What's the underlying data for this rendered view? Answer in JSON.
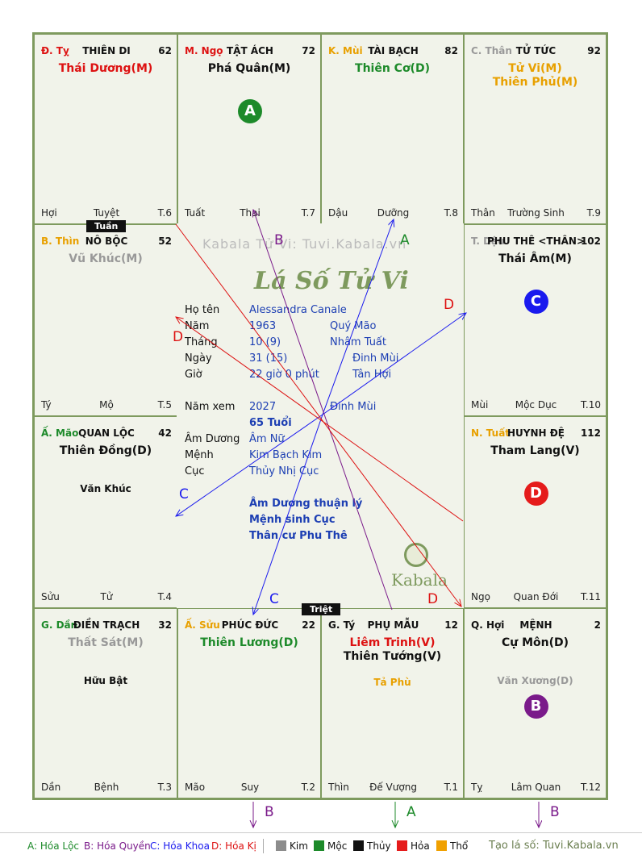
{
  "watermark": "Kabala Tử Vi: Tuvi.Kabala.vn",
  "logo_script": "Lá Số Tử Vi",
  "logo_brand": "Kabala",
  "tags": {
    "tuan": "Tuần",
    "triet": "Triệt"
  },
  "cells": [
    {
      "id": "ty",
      "can": "Đ. Tỵ",
      "can_color": "#d11",
      "palace": "THIÊN DI",
      "num": "62",
      "stars": [
        {
          "t": "Thái Dương(M)",
          "c": "#d11"
        }
      ],
      "minor": [],
      "bl": "Hợi",
      "bm": "Tuyệt",
      "br": "T.6"
    },
    {
      "id": "ngo",
      "can": "M. Ngọ",
      "can_color": "#d11",
      "palace": "TẬT ÁCH",
      "num": "72",
      "stars": [
        {
          "t": "Phá Quân(M)",
          "c": "#111"
        }
      ],
      "minor": [],
      "bl": "Tuất",
      "bm": "Thai",
      "br": "T.7"
    },
    {
      "id": "mui",
      "can": "K. Mùi",
      "can_color": "#e8a000",
      "palace": "TÀI BẠCH",
      "num": "82",
      "stars": [
        {
          "t": "Thiên Cơ(D)",
          "c": "#1d8a2a"
        }
      ],
      "minor": [],
      "bl": "Dậu",
      "bm": "Dưỡng",
      "br": "T.8"
    },
    {
      "id": "than",
      "can": "C. Thân",
      "can_color": "#999",
      "palace": "TỬ TỨC",
      "num": "92",
      "stars": [
        {
          "t": "Tử Vi(M)",
          "c": "#e8a000"
        },
        {
          "t": "Thiên Phủ(M)",
          "c": "#e8a000"
        }
      ],
      "minor": [],
      "bl": "Thân",
      "bm": "Trường Sinh",
      "br": "T.9"
    },
    {
      "id": "thin",
      "can": "B. Thìn",
      "can_color": "#e8a000",
      "palace": "NÔ BỘC",
      "num": "52",
      "stars": [
        {
          "t": "Vũ Khúc(M)",
          "c": "#999"
        }
      ],
      "minor": [],
      "bl": "Tý",
      "bm": "Mộ",
      "br": "T.5"
    },
    {
      "id": "dau",
      "can": "T. Dậu",
      "can_color": "#999",
      "palace": "PHU THÊ <THÂN>",
      "num": "102",
      "stars": [
        {
          "t": "Thái Âm(M)",
          "c": "#111"
        }
      ],
      "minor": [],
      "bl": "Mùi",
      "bm": "Mộc Dục",
      "br": "T.10"
    },
    {
      "id": "mao",
      "can": "Ấ. Mão",
      "can_color": "#1d8a2a",
      "palace": "QUAN LỘC",
      "num": "42",
      "stars": [
        {
          "t": "Thiên Đồng(D)",
          "c": "#111"
        }
      ],
      "minor": [
        {
          "t": "Văn Khúc",
          "c": "#111"
        }
      ],
      "bl": "Sửu",
      "bm": "Tử",
      "br": "T.4"
    },
    {
      "id": "tuat",
      "can": "N. Tuất",
      "can_color": "#e8a000",
      "palace": "HUYNH ĐỆ",
      "num": "112",
      "stars": [
        {
          "t": "Tham Lang(V)",
          "c": "#111"
        }
      ],
      "minor": [],
      "bl": "Ngọ",
      "bm": "Quan Đới",
      "br": "T.11"
    },
    {
      "id": "dan",
      "can": "G. Dần",
      "can_color": "#1d8a2a",
      "palace": "ĐIỀN TRẠCH",
      "num": "32",
      "stars": [
        {
          "t": "Thất Sát(M)",
          "c": "#999"
        }
      ],
      "minor": [
        {
          "t": "Hữu Bật",
          "c": "#111"
        }
      ],
      "bl": "Dần",
      "bm": "Bệnh",
      "br": "T.3"
    },
    {
      "id": "suu",
      "can": "Ấ. Sửu",
      "can_color": "#e8a000",
      "palace": "PHÚC ĐỨC",
      "num": "22",
      "stars": [
        {
          "t": "Thiên Lương(D)",
          "c": "#1d8a2a"
        }
      ],
      "minor": [],
      "bl": "Mão",
      "bm": "Suy",
      "br": "T.2"
    },
    {
      "id": "tyy",
      "can": "G. Tý",
      "can_color": "#111",
      "palace": "PHỤ MẪU",
      "num": "12",
      "stars": [
        {
          "t": "Liêm Trinh(V)",
          "c": "#d11"
        },
        {
          "t": "Thiên Tướng(V)",
          "c": "#111"
        }
      ],
      "minor": [
        {
          "t": "Tả Phù",
          "c": "#e8a000"
        }
      ],
      "bl": "Thìn",
      "bm": "Đế Vượng",
      "br": "T.1"
    },
    {
      "id": "hoi",
      "can": "Q. Hợi",
      "can_color": "#111",
      "palace": "MỆNH",
      "num": "2",
      "stars": [
        {
          "t": "Cự Môn(D)",
          "c": "#111"
        }
      ],
      "minor": [
        {
          "t": "Văn Xương(D)",
          "c": "#999"
        }
      ],
      "bl": "Tỵ",
      "bm": "Lâm Quan",
      "br": "T.12"
    }
  ],
  "badges": [
    {
      "id": "A",
      "cell": "ngo",
      "color": "#1d8a2a"
    },
    {
      "id": "C",
      "cell": "dau",
      "color": "#1a1aee"
    },
    {
      "id": "D",
      "cell": "tuat",
      "color": "#e51b1b"
    },
    {
      "id": "B",
      "cell": "hoi",
      "color": "#7a1a8a"
    }
  ],
  "info": {
    "ho_ten_label": "Họ tên",
    "ho_ten": "Alessandra Canale",
    "nam_label": "Năm",
    "nam": "1963",
    "nam_can": "Quý Mão",
    "thang_label": "Tháng",
    "thang": "10  (9)",
    "thang_can": "Nhâm Tuất",
    "ngay_label": "Ngày",
    "ngay": "31  (15)",
    "ngay_can": "Đinh Mùi",
    "gio_label": "Giờ",
    "gio": "22 giờ 0 phút",
    "gio_can": "Tân Hợi",
    "namxem_label": "Năm xem",
    "namxem": "2027",
    "namxem_can": "Đinh Mùi",
    "tuoi": "65 Tuổi",
    "amduong_label": "Âm Dương",
    "amduong": "Âm Nữ",
    "menh_label": "Mệnh",
    "menh": "Kim Bạch Kim",
    "cuc_label": "Cục",
    "cuc": "Thủy Nhị Cục",
    "note1": "Âm Dương thuận lý",
    "note2": "Mệnh sinh Cục",
    "note3": "Thân cư Phu Thê"
  },
  "arrow_labels": [
    {
      "t": "A",
      "c": "#1d8a2a"
    },
    {
      "t": "B",
      "c": "#7a1a8a"
    },
    {
      "t": "D",
      "c": "#d11"
    },
    {
      "t": "D",
      "c": "#d11"
    },
    {
      "t": "C",
      "c": "#1a1aee"
    },
    {
      "t": "C",
      "c": "#1a1aee"
    },
    {
      "t": "D",
      "c": "#d11"
    },
    {
      "t": "B",
      "c": "#7a1a8a"
    },
    {
      "t": "A",
      "c": "#1d8a2a"
    },
    {
      "t": "B",
      "c": "#7a1a8a"
    }
  ],
  "legend": {
    "a": "A: Hóa Lộc",
    "b": "B: Hóa Quyền",
    "c": "C: Hóa Khoa",
    "d": "D: Hóa Kị",
    "kim": "Kim",
    "moc": "Mộc",
    "thuy": "Thủy",
    "hoa": "Hỏa",
    "tho": "Thổ",
    "kim_color": "#8c8c8c",
    "moc_color": "#1d8a2a",
    "thuy_color": "#111111",
    "hoa_color": "#e51b1b",
    "tho_color": "#f0a000",
    "site": "Tạo lá số: Tuvi.Kabala.vn"
  }
}
